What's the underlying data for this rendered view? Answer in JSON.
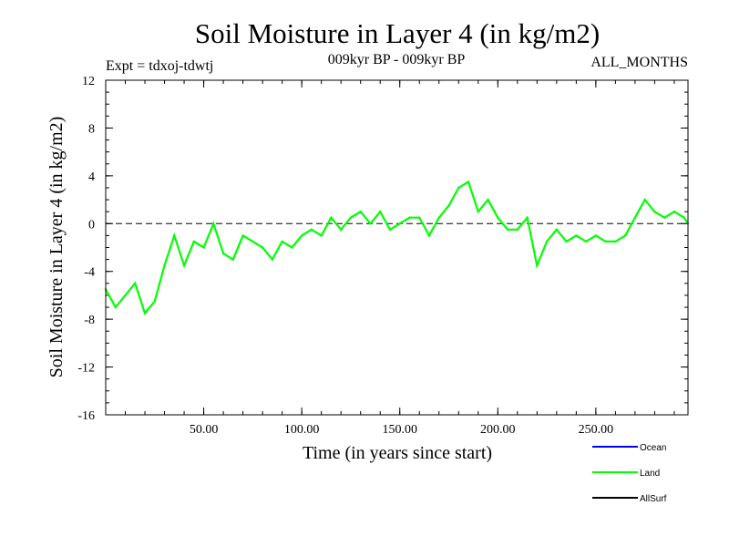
{
  "chart_data": {
    "type": "line",
    "title": "Soil Moisture in Layer 4 (in kg/m2)",
    "subtitle_left": "Expt = tdxoj-tdwtj",
    "subtitle_center": "009kyr BP - 009kyr BP",
    "subtitle_right": "ALL_MONTHS",
    "xlabel": "Time (in years since start)",
    "ylabel": "Soil Moisture in Layer 4 (in kg/m2)",
    "xlim": [
      0,
      297
    ],
    "ylim": [
      -16,
      12
    ],
    "x_ticks": [
      50,
      100,
      150,
      200,
      250
    ],
    "x_tick_labels": [
      "50.00",
      "100.00",
      "150.00",
      "200.00",
      "250.00"
    ],
    "y_ticks": [
      -16,
      -12,
      -8,
      -4,
      0,
      4,
      8,
      12
    ],
    "y_tick_labels": [
      "-16",
      "-12",
      "-8",
      "-4",
      "0",
      "4",
      "8",
      "12"
    ],
    "reference_line": {
      "y": 0,
      "style": "dashed"
    },
    "legend": [
      {
        "label": "Ocean",
        "color": "#0000ff"
      },
      {
        "label": "Land",
        "color": "#00ff00"
      },
      {
        "label": "AllSurf",
        "color": "#000000"
      }
    ],
    "legend_position": "bottom-right",
    "series": [
      {
        "name": "Land",
        "color": "#00ff00",
        "x": [
          0,
          5,
          10,
          15,
          20,
          25,
          30,
          35,
          40,
          45,
          50,
          55,
          60,
          65,
          70,
          75,
          80,
          85,
          90,
          95,
          100,
          105,
          110,
          115,
          120,
          125,
          130,
          135,
          140,
          145,
          150,
          155,
          160,
          165,
          170,
          175,
          180,
          185,
          190,
          195,
          200,
          205,
          210,
          215,
          220,
          225,
          230,
          235,
          240,
          245,
          250,
          255,
          260,
          265,
          270,
          275,
          280,
          285,
          290,
          295,
          297
        ],
        "y": [
          -5.5,
          -7,
          -6,
          -5,
          -7.5,
          -6.5,
          -3.5,
          -1,
          -3.5,
          -1.5,
          -2,
          0,
          -2.5,
          -3,
          -1,
          -1.5,
          -2,
          -3,
          -1.5,
          -2,
          -1,
          -0.5,
          -1,
          0.5,
          -0.5,
          0.5,
          1,
          0,
          1,
          -0.5,
          0,
          0.5,
          0.5,
          -1,
          0.5,
          1.5,
          3,
          3.5,
          1,
          2,
          0.5,
          -0.5,
          -0.5,
          0.5,
          -3.5,
          -1.5,
          -0.5,
          -1.5,
          -1,
          -1.5,
          -1,
          -1.5,
          -1.5,
          -1,
          0.5,
          2,
          1,
          0.5,
          1,
          0.5,
          0
        ]
      }
    ]
  }
}
